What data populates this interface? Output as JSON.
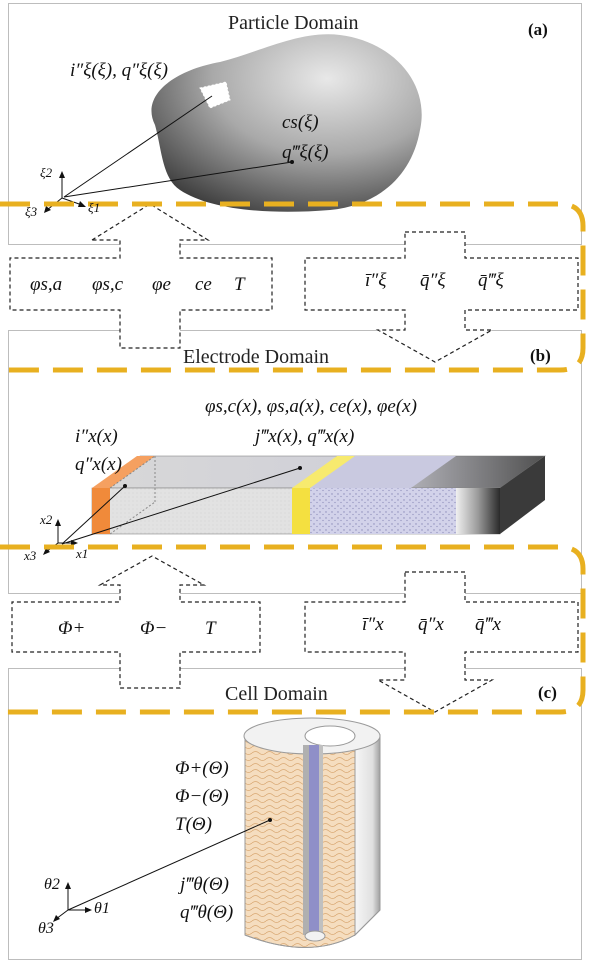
{
  "panels": {
    "particle": {
      "title": "Particle Domain",
      "label": "(a)"
    },
    "electrode": {
      "title": "Electrode Domain",
      "label": "(b)"
    },
    "cell": {
      "title": "Cell Domain",
      "label": "(c)"
    }
  },
  "particle_vars": {
    "surface": "i″ξ(ξ), q″ξ(ξ)",
    "cs": "cs(ξ)",
    "q": "q‴ξ(ξ)"
  },
  "particle_axes": {
    "a1": "ξ1",
    "a2": "ξ2",
    "a3": "ξ3"
  },
  "transfer1_down": {
    "v1": "φs,a",
    "v2": "φs,c",
    "v3": "φe",
    "v4": "ce",
    "v5": "T"
  },
  "transfer1_up": {
    "v1": "ī″ξ",
    "v2": "q̄″ξ",
    "v3": "q̄‴ξ"
  },
  "electrode_vars": {
    "line1": "φs,c(x), φs,a(x), ce(x), φe(x)",
    "line2": "j‴x(x), q‴x(x)",
    "left1": "i″x(x)",
    "left2": "q″x(x)"
  },
  "electrode_axes": {
    "a1": "x1",
    "a2": "x2",
    "a3": "x3"
  },
  "transfer2_down": {
    "v1": "Φ+",
    "v2": "Φ−",
    "v3": "T"
  },
  "transfer2_up": {
    "v1": "ī″x",
    "v2": "q̄″x",
    "v3": "q̄‴x"
  },
  "cell_vars": {
    "v1": "Φ+(Θ)",
    "v2": "Φ−(Θ)",
    "v3": "T(Θ)",
    "v4": "j‴θ(Θ)",
    "v5": "q‴θ(Θ)"
  },
  "cell_axes": {
    "a1": "θ1",
    "a2": "θ2",
    "a3": "θ3"
  },
  "colors": {
    "dash": "#e8b020",
    "orange": "#f08a3a",
    "yellow": "#f4e040",
    "electrolyte": "#c8c8e6",
    "cell": "#f5d9b8",
    "core": "#8f8fc8"
  }
}
